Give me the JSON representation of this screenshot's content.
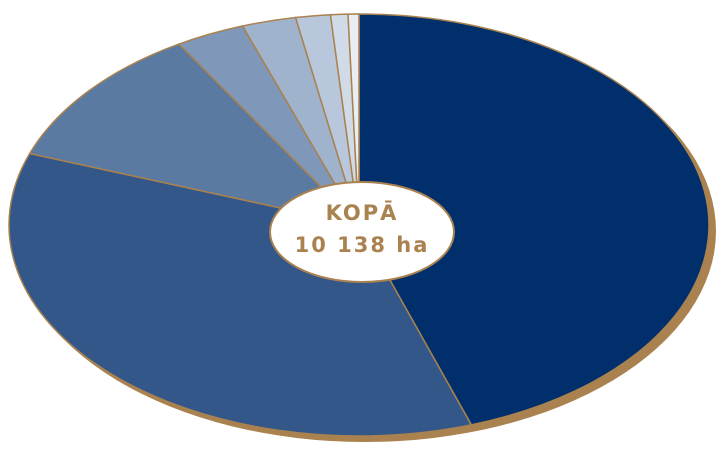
{
  "chart_data": {
    "type": "pie",
    "values": [
      44.8,
      35.7,
      10.9,
      3.2,
      2.5,
      1.6,
      0.8,
      0.5
    ],
    "colors": [
      "#002f6c",
      "#34578a",
      "#5a7aa2",
      "#7f97b8",
      "#a0b3cc",
      "#b8c7db",
      "#d1dbe8",
      "#e9eef4"
    ],
    "annotations": [
      "KOPĀ",
      "10 138 ha"
    ]
  }
}
